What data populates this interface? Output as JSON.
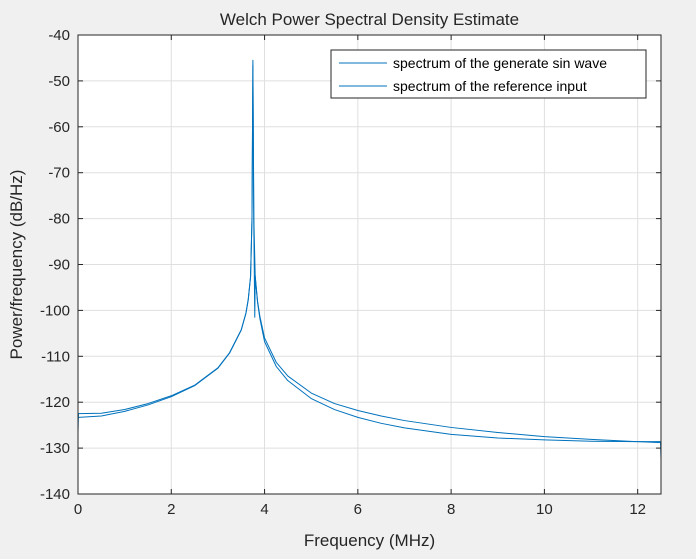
{
  "chart_data": {
    "type": "line",
    "title": "Welch Power Spectral Density Estimate",
    "xlabel": "Frequency (MHz)",
    "ylabel": "Power/frequency (dB/Hz)",
    "xlim": [
      0,
      12.5
    ],
    "ylim": [
      -140,
      -40
    ],
    "xticks": [
      0,
      2,
      4,
      6,
      8,
      10,
      12
    ],
    "yticks": [
      -40,
      -50,
      -60,
      -70,
      -80,
      -90,
      -100,
      -110,
      -120,
      -130,
      -140
    ],
    "grid": true,
    "legend_position": "top-right",
    "line_color": "#0072bd",
    "series": [
      {
        "name": "spectrum of the generate sin wave",
        "x": [
          0,
          0.01,
          0.5,
          1,
          1.5,
          2,
          2.5,
          3,
          3.25,
          3.5,
          3.6,
          3.65,
          3.7,
          3.73,
          3.75,
          3.77,
          3.8,
          3.85,
          3.9,
          4,
          4.25,
          4.5,
          5,
          5.5,
          6,
          6.5,
          7,
          8,
          9,
          10,
          11,
          12,
          12.49,
          12.5
        ],
        "y": [
          -126.5,
          -122.5,
          -122.4,
          -121.6,
          -120.3,
          -118.6,
          -116.3,
          -112.5,
          -109.2,
          -104.2,
          -100.6,
          -97.6,
          -92.6,
          -80,
          -45.5,
          -80,
          -92.8,
          -98,
          -101.3,
          -106,
          -111.3,
          -114.3,
          -118.0,
          -120.3,
          -121.8,
          -123.0,
          -124.0,
          -125.5,
          -126.6,
          -127.5,
          -128.1,
          -128.6,
          -128.8,
          -132.5
        ]
      },
      {
        "name": "spectrum of the reference input",
        "x": [
          0,
          0.01,
          0.5,
          1,
          1.5,
          2,
          2.5,
          3,
          3.25,
          3.5,
          3.6,
          3.65,
          3.7,
          3.73,
          3.75,
          3.77,
          3.79,
          3.8,
          3.85,
          3.9,
          4,
          4.25,
          4.5,
          5,
          5.5,
          6,
          6.5,
          7,
          8,
          9,
          10,
          11,
          12,
          12.5
        ],
        "y": [
          -123.5,
          -123.3,
          -123.0,
          -122.0,
          -120.6,
          -118.8,
          -116.4,
          -112.6,
          -109.3,
          -104.3,
          -100.7,
          -97.7,
          -92.7,
          -80.5,
          -46.5,
          -82,
          -101.5,
          -92.5,
          -98.3,
          -101.8,
          -106.8,
          -112.2,
          -115.3,
          -119.2,
          -121.6,
          -123.3,
          -124.6,
          -125.6,
          -127.0,
          -127.8,
          -128.2,
          -128.5,
          -128.6,
          -128.6
        ]
      }
    ]
  }
}
